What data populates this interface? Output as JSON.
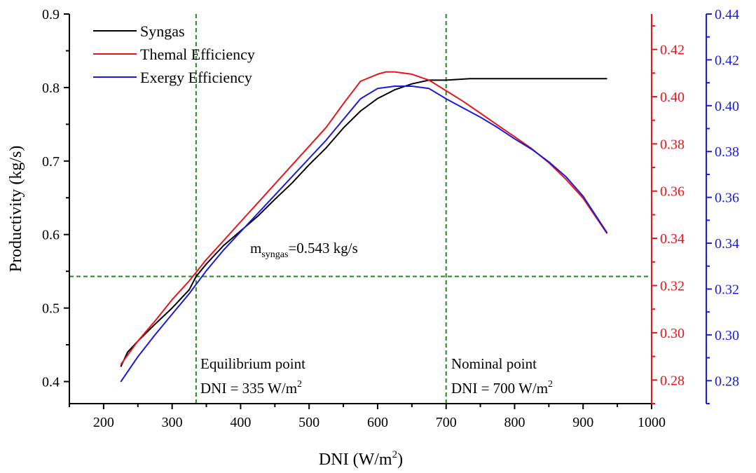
{
  "chart_data": {
    "type": "line",
    "xlabel": "DNI (W/m",
    "xlabel_sup": "2",
    "xlabel_close": ")",
    "ylabel": "Productivity (kg/s)",
    "xlim": [
      150,
      1000
    ],
    "ylim_left": [
      0.37,
      0.9
    ],
    "ylim_red": [
      0.27,
      0.435
    ],
    "ylim_blue": [
      0.27,
      0.44
    ],
    "x_ticks": [
      200,
      300,
      400,
      500,
      600,
      700,
      800,
      900,
      1000
    ],
    "y_ticks_left": [
      0.4,
      0.5,
      0.6,
      0.7,
      0.8,
      0.9
    ],
    "y_ticks_red": [
      0.28,
      0.3,
      0.32,
      0.34,
      0.36,
      0.38,
      0.4,
      0.42
    ],
    "y_ticks_blue": [
      0.28,
      0.3,
      0.32,
      0.34,
      0.36,
      0.38,
      0.4,
      0.42,
      0.44
    ],
    "axis_colors": {
      "left": "#000000",
      "red": "#e8141a",
      "blue": "#1a1adb"
    },
    "legend_position": "top-left",
    "series": [
      {
        "name": "Syngas",
        "axis": "left",
        "color": "#000000",
        "x": [
          225,
          235,
          250,
          275,
          300,
          325,
          335,
          350,
          375,
          400,
          425,
          450,
          475,
          500,
          525,
          550,
          575,
          600,
          625,
          650,
          675,
          700,
          735,
          800,
          900,
          935
        ],
        "y": [
          0.42,
          0.44,
          0.455,
          0.478,
          0.5,
          0.525,
          0.543,
          0.56,
          0.585,
          0.605,
          0.625,
          0.648,
          0.67,
          0.695,
          0.718,
          0.745,
          0.768,
          0.785,
          0.797,
          0.805,
          0.81,
          0.81,
          0.812,
          0.812,
          0.812,
          0.812
        ]
      },
      {
        "name": "Themal Efficiency",
        "axis": "red",
        "color": "#e8141a",
        "x": [
          225,
          250,
          275,
          300,
          325,
          350,
          375,
          400,
          425,
          450,
          475,
          500,
          525,
          550,
          575,
          600,
          612,
          625,
          650,
          675,
          700,
          725,
          750,
          775,
          800,
          825,
          850,
          875,
          900,
          935
        ],
        "y": [
          0.2865,
          0.2965,
          0.305,
          0.314,
          0.322,
          0.331,
          0.339,
          0.347,
          0.355,
          0.363,
          0.371,
          0.379,
          0.387,
          0.397,
          0.4065,
          0.4095,
          0.4105,
          0.4105,
          0.4095,
          0.407,
          0.4025,
          0.398,
          0.393,
          0.388,
          0.383,
          0.378,
          0.372,
          0.365,
          0.357,
          0.342
        ]
      },
      {
        "name": "Exergy Efficiency",
        "axis": "blue",
        "color": "#1a1adb",
        "x": [
          225,
          250,
          275,
          300,
          325,
          350,
          375,
          400,
          425,
          450,
          475,
          500,
          525,
          550,
          575,
          600,
          625,
          650,
          675,
          700,
          725,
          750,
          775,
          800,
          825,
          850,
          875,
          900,
          935
        ],
        "y": [
          0.2795,
          0.2905,
          0.3,
          0.309,
          0.318,
          0.328,
          0.337,
          0.345,
          0.353,
          0.361,
          0.369,
          0.377,
          0.385,
          0.394,
          0.403,
          0.4075,
          0.4085,
          0.4085,
          0.4075,
          0.403,
          0.399,
          0.395,
          0.3905,
          0.3855,
          0.381,
          0.3755,
          0.369,
          0.3605,
          0.3445
        ]
      }
    ],
    "guides": {
      "vertical": [
        335,
        700
      ],
      "horizontal": 0.543,
      "color": "#1f8a1f"
    },
    "annotations": {
      "msyngas_prefix": "m",
      "msyngas_sub": "syngas",
      "msyngas_value": "=0.543 kg/s",
      "equilibrium_title": "Equilibrium point",
      "equilibrium_dni": "DNI = 335 W/m",
      "nominal_title": "Nominal point",
      "nominal_dni": "DNI = 700 W/m",
      "unit_sup": "2"
    }
  }
}
